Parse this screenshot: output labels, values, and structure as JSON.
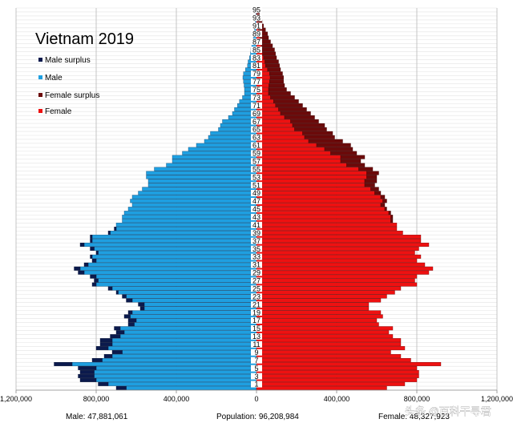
{
  "chart_data": {
    "type": "bar",
    "subtype": "population-pyramid",
    "title": "Vietnam 2019",
    "legend": [
      {
        "key": "male_surplus",
        "label": "Male surplus",
        "color": "#0b1a4d"
      },
      {
        "key": "male",
        "label": "Male",
        "color": "#1f9fe0"
      },
      {
        "key": "female_surplus",
        "label": "Female surplus",
        "color": "#6b0a0a"
      },
      {
        "key": "female",
        "label": "Female",
        "color": "#ee1111"
      }
    ],
    "legend_placement": "top-left",
    "x_ticks": [
      "1,200,000",
      "800,000",
      "400,000",
      "0",
      "400,000",
      "800,000",
      "1,200,000"
    ],
    "xlim": [
      -1200000,
      1200000
    ],
    "grid": true,
    "age_labels": [
      "95",
      "93",
      "91",
      "89",
      "87",
      "85",
      "83",
      "81",
      "79",
      "77",
      "75",
      "73",
      "71",
      "69",
      "67",
      "65",
      "63",
      "61",
      "59",
      "57",
      "55",
      "53",
      "51",
      "49",
      "47",
      "45",
      "43",
      "41",
      "39",
      "37",
      "35",
      "33",
      "31",
      "29",
      "27",
      "25",
      "23",
      "21",
      "19",
      "17",
      "15",
      "13",
      "11",
      "9",
      "7",
      "5",
      "3",
      "1"
    ],
    "ages": [
      0,
      1,
      2,
      3,
      4,
      5,
      6,
      7,
      8,
      9,
      10,
      11,
      12,
      13,
      14,
      15,
      16,
      17,
      18,
      19,
      20,
      21,
      22,
      23,
      24,
      25,
      26,
      27,
      28,
      29,
      30,
      31,
      32,
      33,
      34,
      35,
      36,
      37,
      38,
      39,
      40,
      41,
      42,
      43,
      44,
      45,
      46,
      47,
      48,
      49,
      50,
      51,
      52,
      53,
      54,
      55,
      56,
      57,
      58,
      59,
      60,
      61,
      62,
      63,
      64,
      65,
      66,
      67,
      68,
      69,
      70,
      71,
      72,
      73,
      74,
      75,
      76,
      77,
      78,
      79,
      80,
      81,
      82,
      83,
      84,
      85,
      86,
      87,
      88,
      89,
      90,
      91,
      92,
      93,
      94,
      95
    ],
    "male": [
      700000,
      790000,
      880000,
      890000,
      880000,
      890000,
      1010000,
      820000,
      760000,
      720000,
      800000,
      780000,
      780000,
      730000,
      700000,
      710000,
      640000,
      640000,
      660000,
      640000,
      580000,
      590000,
      650000,
      670000,
      700000,
      740000,
      820000,
      810000,
      830000,
      890000,
      910000,
      860000,
      820000,
      830000,
      800000,
      830000,
      880000,
      830000,
      830000,
      740000,
      710000,
      700000,
      670000,
      670000,
      660000,
      640000,
      620000,
      630000,
      620000,
      590000,
      570000,
      540000,
      540000,
      550000,
      550000,
      510000,
      450000,
      420000,
      420000,
      370000,
      340000,
      300000,
      260000,
      240000,
      230000,
      190000,
      180000,
      170000,
      140000,
      120000,
      110000,
      95000,
      85000,
      70000,
      60000,
      60000,
      62000,
      65000,
      68000,
      65000,
      55000,
      45000,
      42000,
      35000,
      30000,
      28000,
      24000,
      20000,
      16000,
      12000,
      10000,
      8000,
      6000,
      4000,
      3000,
      8000
    ],
    "female": [
      650000,
      740000,
      800000,
      810000,
      810000,
      800000,
      920000,
      770000,
      720000,
      670000,
      740000,
      720000,
      720000,
      680000,
      660000,
      680000,
      610000,
      600000,
      630000,
      620000,
      560000,
      560000,
      620000,
      650000,
      690000,
      720000,
      800000,
      790000,
      800000,
      860000,
      880000,
      840000,
      800000,
      820000,
      790000,
      810000,
      860000,
      820000,
      820000,
      730000,
      700000,
      700000,
      680000,
      680000,
      670000,
      650000,
      640000,
      650000,
      640000,
      620000,
      610000,
      590000,
      600000,
      600000,
      610000,
      580000,
      540000,
      520000,
      540000,
      500000,
      480000,
      470000,
      430000,
      390000,
      380000,
      350000,
      340000,
      310000,
      290000,
      270000,
      250000,
      230000,
      210000,
      190000,
      170000,
      150000,
      140000,
      135000,
      135000,
      130000,
      120000,
      115000,
      110000,
      100000,
      95000,
      90000,
      80000,
      70000,
      60000,
      55000,
      45000,
      35000,
      28000,
      20000,
      15000,
      25000
    ],
    "footer": {
      "male_total": "Male: 47,881,061",
      "population_total": "Population: 96,208,984",
      "female_total": "Female: 48,327,923"
    }
  },
  "watermark": "头条 @百科干寻君"
}
